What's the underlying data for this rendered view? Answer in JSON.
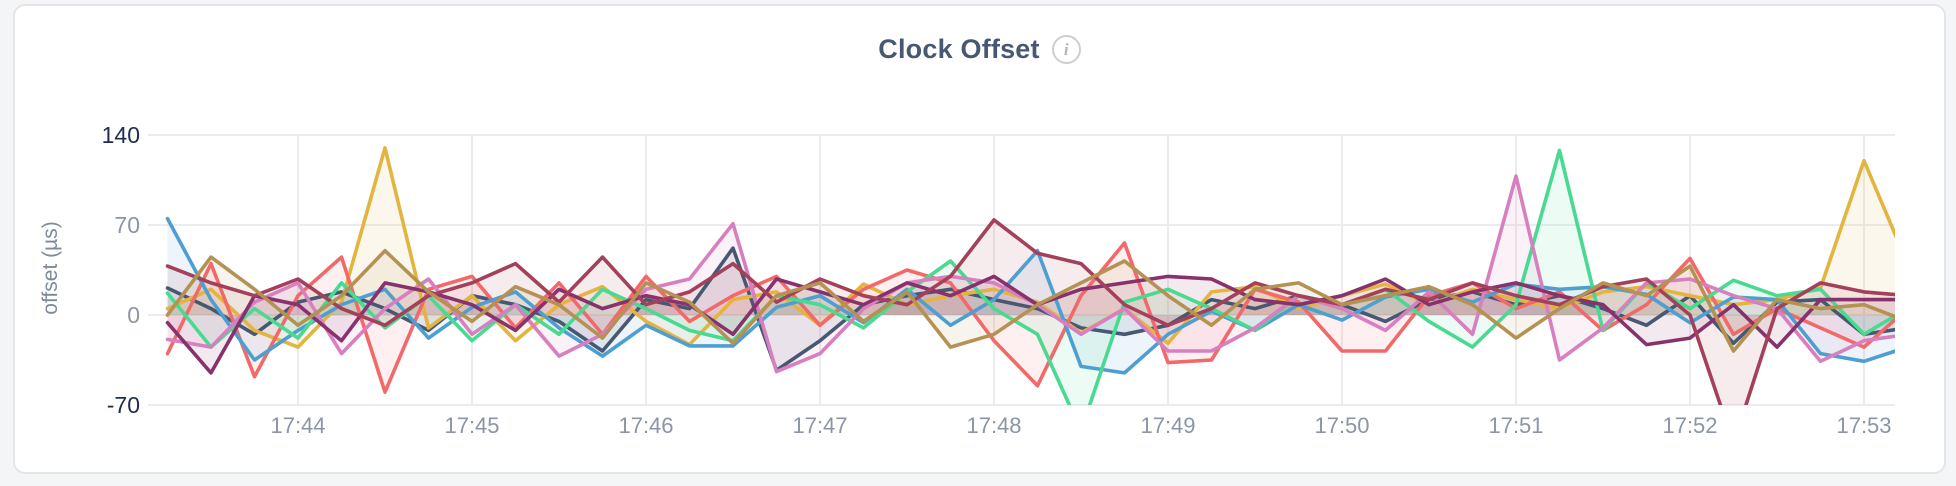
{
  "page": {
    "background": "#f4f5f6",
    "card_background": "#ffffff",
    "card_border": "#e4e5e8"
  },
  "header": {
    "title": "Clock Offset",
    "info_icon_glyph": "i"
  },
  "chart_data": {
    "type": "line",
    "title": "Clock Offset",
    "xlabel": "",
    "ylabel": "offset (µs)",
    "ylim": [
      -70,
      140
    ],
    "grid": true,
    "legend_position": "none",
    "line_fill_opacity": 0.1,
    "gridline_color": "#ececee",
    "axis_text_muted": "#8c95a6",
    "axis_text_emphasis": "#1e2d4d",
    "y_ticks": [
      {
        "value": 140,
        "label": "140",
        "emphasis": true
      },
      {
        "value": 70,
        "label": "70",
        "emphasis": false
      },
      {
        "value": 0,
        "label": "0",
        "emphasis": false
      },
      {
        "value": -70,
        "label": "-70",
        "emphasis": true
      }
    ],
    "x_ticks": [
      {
        "minute": 44,
        "label": "17:44"
      },
      {
        "minute": 45,
        "label": "17:45"
      },
      {
        "minute": 46,
        "label": "17:46"
      },
      {
        "minute": 47,
        "label": "17:47"
      },
      {
        "minute": 48,
        "label": "17:48"
      },
      {
        "minute": 49,
        "label": "17:49"
      },
      {
        "minute": 50,
        "label": "17:50"
      },
      {
        "minute": 51,
        "label": "17:51"
      },
      {
        "minute": 52,
        "label": "17:52"
      },
      {
        "minute": 53,
        "label": "17:53"
      }
    ],
    "x_start_minute": 43.25,
    "x_step_minute": 0.25,
    "series": [
      {
        "name": "series-1-slate",
        "color": "#475872",
        "values": [
          21,
          5,
          -15,
          10,
          18,
          5,
          -12,
          15,
          8,
          -5,
          -28,
          12,
          5,
          52,
          -43,
          -20,
          8,
          15,
          20,
          12,
          5,
          -10,
          -15,
          -8,
          12,
          5,
          15,
          8,
          -5,
          12,
          18,
          8,
          15,
          5,
          -8,
          15,
          -22,
          10,
          12,
          -15,
          -10
        ]
      },
      {
        "name": "series-2-gold",
        "color": "#E4B440",
        "values": [
          5,
          20,
          -12,
          -25,
          10,
          130,
          -10,
          15,
          -20,
          8,
          22,
          -5,
          -23,
          12,
          18,
          -8,
          24,
          8,
          15,
          20,
          10,
          -14,
          5,
          -22,
          18,
          22,
          5,
          15,
          24,
          8,
          20,
          12,
          5,
          18,
          22,
          15,
          8,
          12,
          21,
          120,
          40
        ]
      },
      {
        "name": "series-3-salmon",
        "color": "#F16969",
        "values": [
          -30,
          40,
          -48,
          15,
          45,
          -60,
          20,
          30,
          -10,
          25,
          -15,
          30,
          -5,
          15,
          30,
          -8,
          20,
          35,
          25,
          -20,
          -55,
          15,
          56,
          -37,
          -35,
          20,
          10,
          -28,
          -28,
          15,
          25,
          5,
          18,
          -12,
          8,
          44,
          -15,
          5,
          -10,
          -25,
          5
        ]
      },
      {
        "name": "series-4-blue",
        "color": "#4E9FD1",
        "values": [
          75,
          12,
          -35,
          -12,
          8,
          20,
          -18,
          6,
          18,
          -10,
          -32,
          -8,
          -24,
          -24,
          6,
          15,
          -6,
          20,
          -8,
          12,
          50,
          -40,
          -45,
          -15,
          3,
          -12,
          8,
          -4,
          14,
          20,
          10,
          24,
          20,
          22,
          16,
          -6,
          14,
          12,
          -30,
          -36,
          -25
        ]
      },
      {
        "name": "series-5-green",
        "color": "#49D990",
        "values": [
          17,
          -25,
          5,
          -18,
          25,
          -10,
          15,
          -20,
          8,
          -15,
          20,
          5,
          -12,
          -20,
          15,
          8,
          -10,
          18,
          42,
          5,
          -15,
          -90,
          10,
          20,
          5,
          -12,
          15,
          8,
          20,
          -5,
          -25,
          8,
          128,
          -12,
          25,
          5,
          27,
          15,
          20,
          -15,
          5
        ]
      },
      {
        "name": "series-6-orchid",
        "color": "#D77FBF",
        "values": [
          -19,
          -25,
          10,
          25,
          -30,
          5,
          28,
          -15,
          8,
          -32,
          -15,
          20,
          28,
          71,
          -44,
          -30,
          5,
          25,
          30,
          25,
          8,
          -15,
          5,
          -28,
          -28,
          -10,
          15,
          5,
          -12,
          18,
          -15,
          108,
          -35,
          -10,
          25,
          28,
          15,
          5,
          -36,
          -20,
          -15
        ]
      },
      {
        "name": "series-7-purple",
        "color": "#87326D",
        "values": [
          -6,
          -45,
          15,
          8,
          -20,
          25,
          18,
          8,
          -12,
          20,
          5,
          15,
          8,
          -15,
          28,
          18,
          8,
          25,
          15,
          30,
          8,
          20,
          25,
          30,
          28,
          12,
          8,
          15,
          28,
          8,
          18,
          25,
          15,
          8,
          -23,
          -18,
          8,
          -25,
          12,
          12,
          12
        ]
      },
      {
        "name": "series-8-maroon",
        "color": "#A3415B",
        "values": [
          38,
          25,
          15,
          28,
          5,
          -8,
          15,
          25,
          40,
          10,
          45,
          8,
          18,
          40,
          10,
          28,
          15,
          8,
          30,
          74,
          48,
          40,
          8,
          -8,
          5,
          25,
          15,
          8,
          20,
          12,
          25,
          15,
          8,
          22,
          28,
          0,
          -100,
          5,
          25,
          18,
          15
        ]
      },
      {
        "name": "series-9-olive",
        "color": "#B59153",
        "values": [
          0,
          45,
          20,
          -8,
          15,
          50,
          18,
          -5,
          22,
          8,
          -18,
          25,
          10,
          -22,
          15,
          25,
          -5,
          18,
          -25,
          -15,
          8,
          25,
          42,
          15,
          -8,
          20,
          25,
          8,
          15,
          22,
          8,
          -18,
          5,
          25,
          15,
          38,
          -28,
          12,
          5,
          8,
          -5
        ]
      }
    ]
  }
}
